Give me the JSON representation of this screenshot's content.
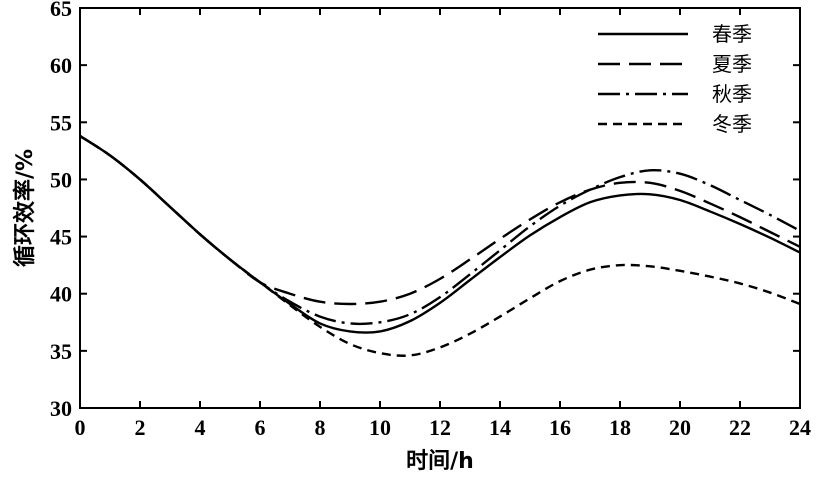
{
  "chart_data": {
    "type": "line",
    "title": "",
    "xlabel": "时间/h",
    "ylabel": "循环效率/%",
    "xlim": [
      0,
      24
    ],
    "ylim": [
      30,
      65
    ],
    "xticks": [
      0,
      2,
      4,
      6,
      8,
      10,
      12,
      14,
      16,
      18,
      20,
      22,
      24
    ],
    "yticks": [
      30,
      35,
      40,
      45,
      50,
      55,
      60,
      65
    ],
    "xtick_labels": [
      "0",
      "2",
      "4",
      "6",
      "8",
      "10",
      "12",
      "14",
      "16",
      "18",
      "20",
      "22",
      "24"
    ],
    "ytick_labels": [
      "30",
      "35",
      "40",
      "45",
      "50",
      "55",
      "60",
      "65"
    ],
    "grid": false,
    "legend_position": "top-right",
    "series": [
      {
        "name": "春季",
        "dash": "solid",
        "x": [
          0,
          1,
          2,
          3,
          4,
          5,
          6,
          7,
          8,
          9,
          10,
          11,
          12,
          13,
          14,
          15,
          16,
          17,
          18,
          19,
          20,
          21,
          22,
          23,
          24
        ],
        "y": [
          53.8,
          52.1,
          50.0,
          47.6,
          45.2,
          43.0,
          41.0,
          39.1,
          37.4,
          36.7,
          36.7,
          37.6,
          39.2,
          41.2,
          43.2,
          45.1,
          46.7,
          48.0,
          48.6,
          48.7,
          48.2,
          47.2,
          46.1,
          44.9,
          43.6
        ]
      },
      {
        "name": "夏季",
        "dash": "dash",
        "x": [
          0,
          1,
          2,
          3,
          4,
          5,
          6,
          7,
          8,
          9,
          10,
          11,
          12,
          13,
          14,
          15,
          16,
          17,
          18,
          19,
          20,
          21,
          22,
          23,
          24
        ],
        "y": [
          53.8,
          52.1,
          50.0,
          47.6,
          45.2,
          43.0,
          41.0,
          40.0,
          39.3,
          39.1,
          39.3,
          40.0,
          41.3,
          43.0,
          44.8,
          46.5,
          48.0,
          49.1,
          49.7,
          49.7,
          49.0,
          47.9,
          46.7,
          45.4,
          44.1
        ]
      },
      {
        "name": "秋季",
        "dash": "dashdot",
        "x": [
          0,
          1,
          2,
          3,
          4,
          5,
          6,
          7,
          8,
          9,
          10,
          11,
          12,
          13,
          14,
          15,
          16,
          17,
          18,
          19,
          20,
          21,
          22,
          23,
          24
        ],
        "y": [
          53.8,
          52.1,
          50.0,
          47.6,
          45.2,
          43.0,
          41.0,
          39.3,
          38.0,
          37.4,
          37.5,
          38.2,
          39.7,
          41.7,
          43.8,
          45.9,
          47.7,
          49.1,
          50.2,
          50.8,
          50.5,
          49.5,
          48.2,
          46.9,
          45.5
        ]
      },
      {
        "name": "冬季",
        "dash": "dotted",
        "x": [
          0,
          1,
          2,
          3,
          4,
          5,
          6,
          7,
          8,
          9,
          10,
          11,
          12,
          13,
          14,
          15,
          16,
          17,
          18,
          19,
          20,
          21,
          22,
          23,
          24
        ],
        "y": [
          53.8,
          52.1,
          50.0,
          47.6,
          45.2,
          43.0,
          41.0,
          39.0,
          37.1,
          35.6,
          34.8,
          34.6,
          35.3,
          36.5,
          38.0,
          39.6,
          41.1,
          42.1,
          42.5,
          42.4,
          42.0,
          41.5,
          40.9,
          40.1,
          39.1
        ]
      }
    ]
  }
}
